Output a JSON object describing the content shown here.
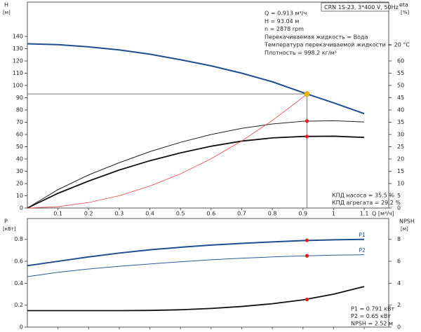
{
  "chart_data": [
    {
      "type": "line",
      "model": "CRN 1S-23, 3*400 V, 50Hz",
      "info": [
        "Q = 0.913 м³/ч",
        "H = 93.04 м",
        "n = 2878 rpm",
        "Перекачиваемая жидкость = Вода",
        "Температура перекачиваемой жидкости = 20 °C",
        "Плотность = 998.2 кг/м³"
      ],
      "notes": [
        "КПД насоса = 35.5 %",
        "КПД агрегата = 29.2 %"
      ],
      "ylabel": "H",
      "yunit": "[м]",
      "y2label": "eta",
      "y2unit": "[%]",
      "xlabel": "Q [м³/ч]",
      "xlim": [
        0,
        1.18
      ],
      "xticks": [
        0.1,
        0.2,
        0.3,
        0.4,
        0.5,
        0.6,
        0.7,
        0.8,
        0.9,
        1.0,
        1.1
      ],
      "ylim": [
        0,
        168
      ],
      "yticks": [
        0,
        10,
        20,
        30,
        40,
        50,
        60,
        70,
        80,
        90,
        100,
        110,
        120,
        130,
        140
      ],
      "y2lim": [
        0,
        84
      ],
      "y2ticks": [
        0,
        5,
        10,
        15,
        20,
        25,
        30,
        35,
        40,
        45,
        50,
        55,
        60
      ],
      "series": [
        {
          "color": "#1f4e8c",
          "width": 2,
          "x": [
            0,
            0.1,
            0.2,
            0.3,
            0.4,
            0.5,
            0.6,
            0.7,
            0.8,
            0.9,
            1.0,
            1.1
          ],
          "values": [
            134,
            133.3,
            131.5,
            129,
            125.5,
            121,
            116,
            110,
            103,
            94.2,
            85.8,
            77
          ]
        },
        {
          "color": "#222222",
          "width": 1,
          "axis": "y2",
          "x": [
            0,
            0.1,
            0.2,
            0.3,
            0.4,
            0.5,
            0.6,
            0.7,
            0.8,
            0.9,
            1.0,
            1.1
          ],
          "values": [
            0,
            7.5,
            13.5,
            18.5,
            23,
            26.8,
            30,
            32.5,
            34.3,
            35.4,
            35.6,
            35.1
          ]
        },
        {
          "color": "#111111",
          "width": 1.8,
          "axis": "y2",
          "x": [
            0,
            0.1,
            0.2,
            0.3,
            0.4,
            0.5,
            0.6,
            0.7,
            0.8,
            0.9,
            1.0,
            1.1
          ],
          "values": [
            0,
            6,
            11,
            15.5,
            19.3,
            22.5,
            25.2,
            27.3,
            28.6,
            29.2,
            29.3,
            28.8
          ]
        },
        {
          "color": "#ee4444",
          "width": 0.8,
          "x": [
            0,
            0.1,
            0.2,
            0.3,
            0.4,
            0.5,
            0.6,
            0.7,
            0.8,
            0.9,
            0.913
          ],
          "values": [
            0,
            1.1,
            4.5,
            10,
            17.9,
            27.9,
            40.2,
            54.7,
            71.4,
            90.4,
            93.04
          ]
        }
      ],
      "markers": [
        {
          "x": 0.913,
          "y": 93.04,
          "color": "#f5b800",
          "guides": true
        },
        {
          "x": 0.913,
          "y": 35.5,
          "axis": "y2",
          "color": "#e81c1c"
        },
        {
          "x": 0.913,
          "y": 29.2,
          "axis": "y2",
          "color": "#e81c1c"
        }
      ]
    },
    {
      "type": "line",
      "info": [
        "P1 = 0.791 кВт",
        "P2 = 0.65 кВт",
        "NPSH = 2.52 м"
      ],
      "ylabel": "P",
      "yunit": "[кВт]",
      "y2label": "NPSH",
      "y2unit": "[м]",
      "xlim": [
        0,
        1.18
      ],
      "xticks": [
        0.1,
        0.2,
        0.3,
        0.4,
        0.5,
        0.6,
        0.7,
        0.8,
        0.9,
        1.0,
        1.1
      ],
      "ylim": [
        0,
        0.99
      ],
      "yticks": [
        0,
        0.2,
        0.4,
        0.6,
        0.8
      ],
      "y2lim": [
        0,
        9.9
      ],
      "y2ticks": [
        0,
        2,
        4,
        6,
        8
      ],
      "series": [
        {
          "name": "P1",
          "color": "#1f4e8c",
          "width": 2,
          "x": [
            0,
            0.1,
            0.2,
            0.3,
            0.4,
            0.5,
            0.6,
            0.7,
            0.8,
            0.9,
            1.0,
            1.1
          ],
          "values": [
            0.56,
            0.6,
            0.64,
            0.675,
            0.705,
            0.728,
            0.748,
            0.763,
            0.777,
            0.789,
            0.796,
            0.8
          ]
        },
        {
          "name": "P2",
          "color": "#2f5b9c",
          "width": 1,
          "x": [
            0,
            0.1,
            0.2,
            0.3,
            0.4,
            0.5,
            0.6,
            0.7,
            0.8,
            0.9,
            1.0,
            1.1
          ],
          "values": [
            0.46,
            0.5,
            0.53,
            0.555,
            0.576,
            0.596,
            0.614,
            0.628,
            0.64,
            0.649,
            0.656,
            0.66
          ]
        },
        {
          "color": "#111111",
          "width": 1.8,
          "axis": "y2",
          "x": [
            0,
            0.1,
            0.2,
            0.3,
            0.4,
            0.5,
            0.6,
            0.7,
            0.8,
            0.9,
            1.0,
            1.1
          ],
          "values": [
            1.5,
            1.5,
            1.5,
            1.5,
            1.52,
            1.58,
            1.7,
            1.88,
            2.13,
            2.48,
            3.0,
            3.7
          ]
        }
      ],
      "markers": [
        {
          "x": 0.913,
          "y": 0.791,
          "color": "#e81c1c"
        },
        {
          "x": 0.913,
          "y": 0.65,
          "color": "#e81c1c"
        },
        {
          "x": 0.913,
          "y": 2.52,
          "axis": "y2",
          "color": "#e81c1c"
        }
      ]
    }
  ]
}
